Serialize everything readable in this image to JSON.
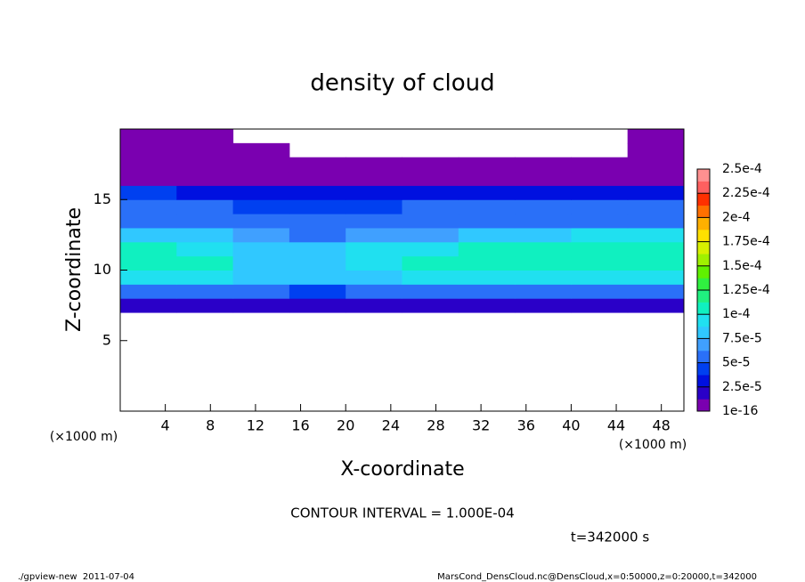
{
  "chart_data": {
    "type": "contour",
    "title": "density of cloud",
    "xlabel": "X-coordinate",
    "ylabel": "Z-coordinate",
    "x_unit": "(×1000 m)",
    "y_unit": "(×1000 m)",
    "contour_note": "CONTOUR INTERVAL = 1.000E-04",
    "time_label": "t=342000 s",
    "footer_left": "./gpview-new  2011-07-04",
    "footer_right": "MarsCond_DensCloud.nc@DensCloud,x=0:50000,z=0:20000,t=342000",
    "xlim": [
      0,
      50
    ],
    "ylim": [
      0,
      20
    ],
    "xticks": [
      4,
      8,
      12,
      16,
      20,
      24,
      28,
      32,
      36,
      40,
      44,
      48
    ],
    "yticks": [
      5,
      10,
      15
    ],
    "xbins": [
      0,
      5,
      10,
      15,
      20,
      25,
      30,
      35,
      40,
      45,
      50
    ],
    "zbins": [
      7,
      8,
      9,
      10,
      11,
      12,
      13,
      14,
      15,
      16,
      17,
      18,
      19,
      20
    ],
    "values": [
      [
        1.5e-05,
        1.5e-05,
        1.5e-05,
        1.5e-05,
        1.5e-05,
        1.5e-05,
        1.5e-05,
        1.5e-05,
        1.5e-05,
        1.5e-05
      ],
      [
        5e-05,
        5.5e-05,
        5e-05,
        4.5e-05,
        5e-05,
        5e-05,
        5.5e-05,
        5.5e-05,
        5e-05,
        5e-05
      ],
      [
        9e-05,
        9e-05,
        8e-05,
        7.5e-05,
        8.5e-05,
        9e-05,
        9e-05,
        9e-05,
        9.5e-05,
        9.5e-05
      ],
      [
        0.000105,
        0.0001,
        8.5e-05,
        8e-05,
        9.5e-05,
        0.0001,
        0.000105,
        0.000105,
        0.00011,
        0.00011
      ],
      [
        0.000105,
        9.5e-05,
        8e-05,
        8.5e-05,
        9e-05,
        9.5e-05,
        0.000105,
        0.00011,
        0.00011,
        0.00011
      ],
      [
        8.5e-05,
        7.5e-05,
        6.5e-05,
        6e-05,
        6.5e-05,
        6.5e-05,
        7.5e-05,
        8.5e-05,
        9.5e-05,
        9.5e-05
      ],
      [
        6e-05,
        6e-05,
        5.5e-05,
        5e-05,
        5e-05,
        5e-05,
        5.5e-05,
        6e-05,
        6e-05,
        6e-05
      ],
      [
        5.5e-05,
        5.5e-05,
        4.5e-05,
        4.5e-05,
        4.5e-05,
        5e-05,
        5e-05,
        5e-05,
        5e-05,
        5e-05
      ],
      [
        4e-05,
        3.5e-05,
        3e-05,
        3e-05,
        3.5e-05,
        3.5e-05,
        3.5e-05,
        3.5e-05,
        3.5e-05,
        3.5e-05
      ],
      [
        1e-05,
        1e-05,
        1e-05,
        1e-05,
        1e-05,
        1e-05,
        1e-05,
        1e-05,
        1e-05,
        1e-05
      ],
      [
        5e-06,
        5e-06,
        5e-06,
        5e-06,
        5e-06,
        5e-06,
        5e-06,
        5e-06,
        5e-06,
        5e-06
      ],
      [
        5e-06,
        5e-06,
        5e-06,
        null,
        null,
        null,
        null,
        null,
        null,
        5e-06
      ],
      [
        5e-06,
        5e-06,
        null,
        null,
        null,
        null,
        null,
        null,
        null,
        5e-06
      ]
    ],
    "colorbar_ticks": [
      1e-16,
      {
        "value": 2.5e-05,
        "label": "2.5e-5"
      },
      {
        "value": 5e-05,
        "label": "5e-5"
      },
      {
        "value": 7.5e-05,
        "label": "7.5e-5"
      },
      {
        "value": 0.0001,
        "label": "1e-4"
      },
      {
        "value": 0.000125,
        "label": "1.25e-4"
      },
      {
        "value": 0.00015,
        "label": "1.5e-4"
      },
      {
        "value": 0.000175,
        "label": "1.75e-4"
      },
      {
        "value": 0.0002,
        "label": "2e-4"
      },
      {
        "value": 0.000225,
        "label": "2.25e-4"
      },
      {
        "value": 0.00025,
        "label": "2.5e-4"
      }
    ],
    "colors": [
      "#7a00b0",
      "#2a00c8",
      "#0010e0",
      "#0040f0",
      "#2a70f8",
      "#40a0ff",
      "#30c8ff",
      "#20e0f0",
      "#10f0c0",
      "#20f080",
      "#30f040",
      "#60f000",
      "#a0f000",
      "#d8f000",
      "#ffe000",
      "#ffb000",
      "#ff7000",
      "#ff3000",
      "#ff6060",
      "#ff9090"
    ]
  }
}
